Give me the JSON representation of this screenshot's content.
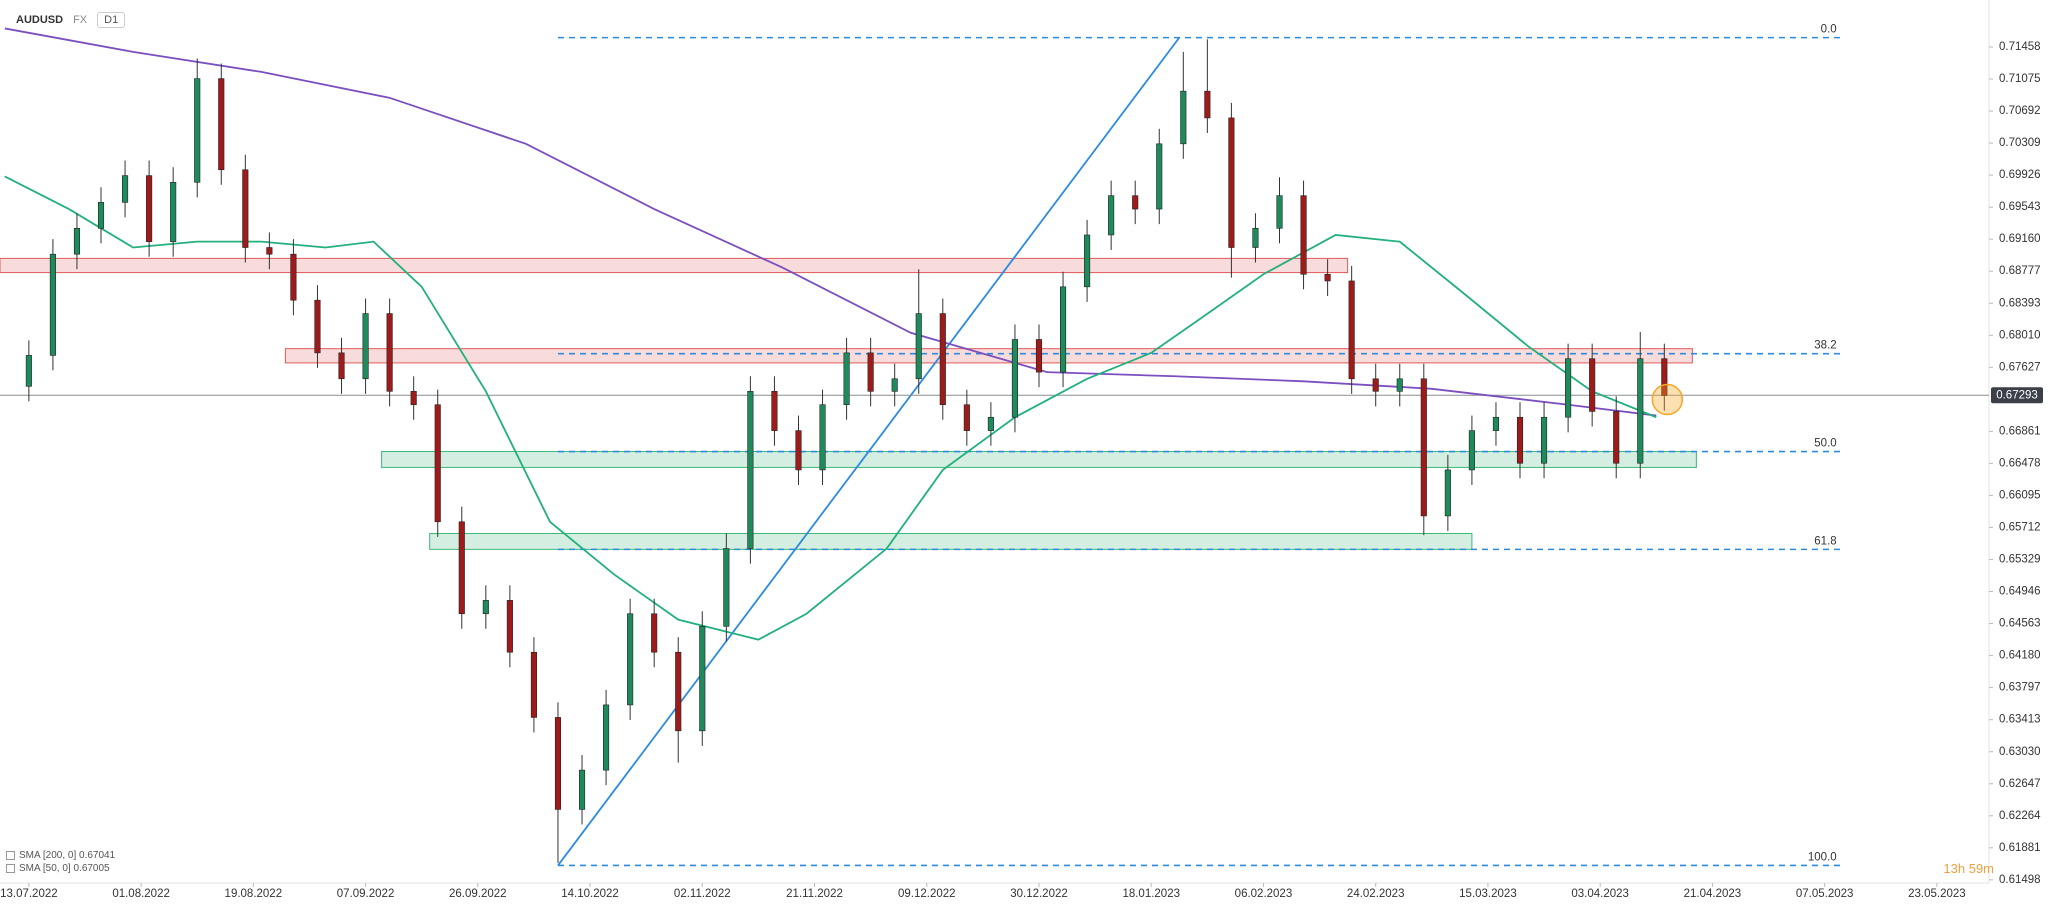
{
  "header": {
    "symbol": "AUDUSD",
    "market": "FX",
    "timeframe": "D1"
  },
  "legend": [
    "SMA [200, 0] 0.67041",
    "SMA [50, 0] 0.67005"
  ],
  "timer": "13h 59m",
  "chart_data": {
    "type": "candlestick",
    "xlim": [
      -3.6,
      244.5
    ],
    "ylim": [
      0.6146,
      0.7202
    ],
    "xticks": [
      {
        "value": 0,
        "label": "13.07.2022"
      },
      {
        "value": 14,
        "label": "01.08.2022"
      },
      {
        "value": 28,
        "label": "19.08.2022"
      },
      {
        "value": 42,
        "label": "07.09.2022"
      },
      {
        "value": 56,
        "label": "26.09.2022"
      },
      {
        "value": 70,
        "label": "14.10.2022"
      },
      {
        "value": 84,
        "label": "02.11.2022"
      },
      {
        "value": 98,
        "label": "21.11.2022"
      },
      {
        "value": 112,
        "label": "09.12.2022"
      },
      {
        "value": 126,
        "label": "30.12.2022"
      },
      {
        "value": 140,
        "label": "18.01.2023"
      },
      {
        "value": 154,
        "label": "06.02.2023"
      },
      {
        "value": 168,
        "label": "24.02.2023"
      },
      {
        "value": 182,
        "label": "15.03.2023"
      },
      {
        "value": 196,
        "label": "03.04.2023"
      },
      {
        "value": 210,
        "label": "21.04.2023"
      },
      {
        "value": 224,
        "label": "07.05.2023"
      },
      {
        "value": 238,
        "label": "23.05.2023"
      }
    ],
    "yticks": [
      0.71458,
      0.71075,
      0.70692,
      0.70309,
      0.69926,
      0.69543,
      {
        "value": 0.6916,
        "label": "0.69160"
      },
      0.68777,
      0.68393,
      {
        "value": 0.6801,
        "label": "0.68010"
      },
      0.67627,
      0.66861,
      0.66478,
      0.66095,
      0.65712,
      0.65329,
      0.64946,
      0.64563,
      {
        "value": 0.6418,
        "label": "0.64180"
      },
      0.63797,
      0.63413,
      {
        "value": 0.6303,
        "label": "0.63030"
      },
      0.62647,
      0.62264,
      0.61881,
      0.61498
    ],
    "x": [
      0,
      3,
      6,
      9,
      12,
      15,
      18,
      21,
      24,
      27,
      30,
      33,
      36,
      39,
      42,
      45,
      48,
      51,
      54,
      57,
      60,
      63,
      66,
      69,
      72,
      75,
      78,
      81,
      84,
      87,
      90,
      93,
      96,
      99,
      102,
      105,
      108,
      111,
      114,
      117,
      120,
      123,
      126,
      129,
      132,
      135,
      138,
      141,
      144,
      147,
      150,
      153,
      156,
      159,
      162,
      165,
      168,
      171,
      174,
      177,
      180,
      183,
      186,
      189,
      192,
      195,
      198,
      201,
      204
    ],
    "open": [
      0.674,
      0.6777,
      0.6898,
      0.6929,
      0.696,
      0.6992,
      0.6913,
      0.6984,
      0.7108,
      0.6999,
      0.6906,
      0.6898,
      0.6843,
      0.678,
      0.6749,
      0.6827,
      0.6734,
      0.6718,
      0.6578,
      0.6468,
      0.6484,
      0.6422,
      0.6344,
      0.6234,
      0.6281,
      0.6359,
      0.6468,
      0.6422,
      0.6328,
      0.6453,
      0.6546,
      0.6734,
      0.6687,
      0.664,
      0.6718,
      0.678,
      0.6734,
      0.6749,
      0.6827,
      0.6718,
      0.6687,
      0.6703,
      0.6796,
      0.6757,
      0.6859,
      0.6921,
      0.6968,
      0.6952,
      0.703,
      0.7093,
      0.7061,
      0.6906,
      0.6929,
      0.6968,
      0.6874,
      0.6866,
      0.6749,
      0.6734,
      0.6749,
      0.6585,
      0.664,
      0.6687,
      0.6703,
      0.6648,
      0.6703,
      0.6773,
      0.671,
      0.6648,
      0.6773
    ],
    "high": [
      0.6795,
      0.6916,
      0.6947,
      0.6978,
      0.701,
      0.701,
      0.7002,
      0.7132,
      0.7126,
      0.7017,
      0.6924,
      0.6916,
      0.6861,
      0.6798,
      0.6845,
      0.6845,
      0.6752,
      0.6736,
      0.6596,
      0.6502,
      0.6502,
      0.644,
      0.6362,
      0.6299,
      0.6377,
      0.6486,
      0.6486,
      0.644,
      0.6471,
      0.6564,
      0.6752,
      0.6752,
      0.6705,
      0.6736,
      0.6798,
      0.6798,
      0.6767,
      0.688,
      0.6845,
      0.6736,
      0.6721,
      0.6814,
      0.6814,
      0.6877,
      0.6939,
      0.6986,
      0.6986,
      0.7048,
      0.714,
      0.7155,
      0.7079,
      0.6947,
      0.699,
      0.6986,
      0.6892,
      0.6884,
      0.6767,
      0.6767,
      0.6767,
      0.6658,
      0.6705,
      0.6721,
      0.6721,
      0.6721,
      0.6791,
      0.6791,
      0.6728,
      0.6805,
      0.6791
    ],
    "low": [
      0.6722,
      0.6759,
      0.688,
      0.6911,
      0.6942,
      0.6895,
      0.6895,
      0.6966,
      0.6981,
      0.6888,
      0.688,
      0.6825,
      0.6762,
      0.6731,
      0.6731,
      0.6716,
      0.67,
      0.656,
      0.645,
      0.645,
      0.6404,
      0.6326,
      0.617,
      0.6216,
      0.6263,
      0.6341,
      0.6404,
      0.629,
      0.631,
      0.6435,
      0.6528,
      0.6669,
      0.6622,
      0.6622,
      0.67,
      0.6716,
      0.6716,
      0.6731,
      0.67,
      0.6669,
      0.6669,
      0.6685,
      0.6739,
      0.6739,
      0.6841,
      0.6903,
      0.6934,
      0.6934,
      0.7012,
      0.7043,
      0.687,
      0.6888,
      0.6911,
      0.6856,
      0.6848,
      0.6731,
      0.6716,
      0.6716,
      0.6562,
      0.6567,
      0.6622,
      0.6669,
      0.663,
      0.663,
      0.6685,
      0.6692,
      0.663,
      0.663,
      0.6711
    ],
    "close": [
      0.6777,
      0.6898,
      0.6929,
      0.696,
      0.6992,
      0.6913,
      0.6984,
      0.7108,
      0.6999,
      0.6906,
      0.6898,
      0.6843,
      0.678,
      0.6749,
      0.6827,
      0.6734,
      0.6718,
      0.6578,
      0.6468,
      0.6484,
      0.6422,
      0.6344,
      0.6234,
      0.6281,
      0.6359,
      0.6468,
      0.6422,
      0.6328,
      0.6453,
      0.6546,
      0.6734,
      0.6687,
      0.664,
      0.6718,
      0.678,
      0.6734,
      0.6749,
      0.6827,
      0.6718,
      0.6687,
      0.6703,
      0.6796,
      0.6757,
      0.6859,
      0.6921,
      0.6968,
      0.6952,
      0.703,
      0.7093,
      0.7061,
      0.6906,
      0.6929,
      0.6968,
      0.6874,
      0.6866,
      0.6749,
      0.6734,
      0.6749,
      0.6585,
      0.664,
      0.6687,
      0.6703,
      0.6648,
      0.6703,
      0.6773,
      0.671,
      0.6648,
      0.6773,
      0.6729
    ],
    "up_color": "#1f8a5b",
    "down_color": "#9e1b1b",
    "lines": [
      {
        "color": "#7b4fbf",
        "x": [
          -3,
          13,
          29,
          45,
          62,
          78,
          94,
          110,
          127,
          143,
          159,
          175,
          192,
          203
        ],
        "y": [
          0.7168,
          0.714,
          0.7116,
          0.7085,
          0.703,
          0.6952,
          0.6882,
          0.6804,
          0.6757,
          0.6752,
          0.6746,
          0.6737,
          0.6718,
          0.6705
        ]
      },
      {
        "color": "#22b07d",
        "x": [
          -3,
          5,
          13,
          21,
          29,
          37,
          43,
          49,
          57,
          65,
          73,
          81,
          91,
          97,
          107,
          114,
          123,
          132,
          140,
          146,
          154,
          163,
          171,
          179,
          187,
          195,
          203
        ],
        "y": [
          0.6991,
          0.6952,
          0.6906,
          0.6913,
          0.6913,
          0.6906,
          0.6913,
          0.6859,
          0.6734,
          0.6578,
          0.6515,
          0.6461,
          0.6437,
          0.6468,
          0.6546,
          0.664,
          0.6703,
          0.6749,
          0.678,
          0.682,
          0.6874,
          0.6921,
          0.6913,
          0.6851,
          0.6788,
          0.6734,
          0.6703
        ]
      }
    ],
    "zones": [
      {
        "color": "#e05a5a",
        "low": 0.6876,
        "high": 0.6893,
        "x0": -3.6,
        "x1": 164.5
      },
      {
        "color": "#e05a5a",
        "low": 0.6768,
        "high": 0.6785,
        "x0": 32,
        "x1": 207.5
      },
      {
        "color": "#3cb878",
        "low": 0.6643,
        "high": 0.6662,
        "x0": 44,
        "x1": 208
      },
      {
        "color": "#3cb878",
        "low": 0.6545,
        "high": 0.6564,
        "x0": 50,
        "x1": 180
      }
    ],
    "trendline": {
      "color": "#2b8be0",
      "x": [
        66,
        143.5
      ],
      "y": [
        0.6167,
        0.7157
      ]
    },
    "fibonacci": {
      "color": "#2b8be0",
      "x0": 66,
      "x1": 226,
      "levels": [
        {
          "label": "0.0",
          "price": 0.7157
        },
        {
          "label": "38.2",
          "price": 0.6779
        },
        {
          "label": "50.0",
          "price": 0.6662
        },
        {
          "label": "61.8",
          "price": 0.6545
        },
        {
          "label": "100.0",
          "price": 0.6167
        }
      ]
    },
    "current_price": 0.67293
  }
}
